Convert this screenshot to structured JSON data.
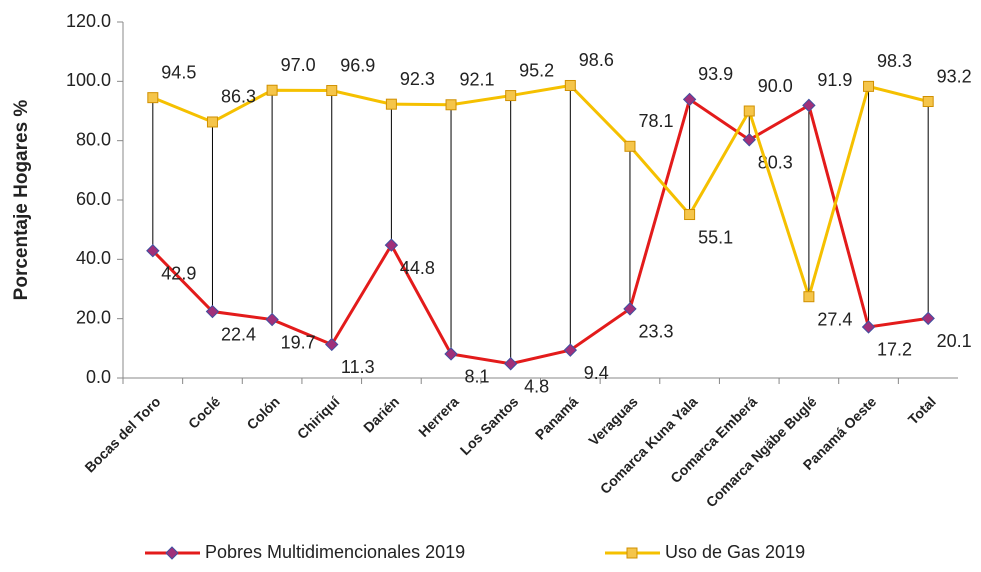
{
  "chart_data": {
    "type": "line",
    "y_label": "Porcentaje Hogares %",
    "categories": [
      "Bocas del Toro",
      "Coclé",
      "Colón",
      "Chiriquí",
      "Darién",
      "Herrera",
      "Los Santos",
      "Panamá",
      "Veraguas",
      "Comarca Kuna Yala",
      "Comarca Emberá",
      "Comarca Ngäbe Buglé",
      "Panamá Oeste",
      "Total"
    ],
    "series": [
      {
        "name": "Pobres Multidimencionales 2019",
        "color": "#e31b1b",
        "marker": "diamond",
        "marker_color": "#a0307a",
        "values": [
          42.9,
          22.4,
          19.7,
          11.3,
          44.8,
          8.1,
          4.8,
          9.4,
          23.3,
          93.9,
          80.3,
          91.9,
          17.2,
          20.1
        ],
        "value_labels": [
          "42.9",
          "22.4",
          "19.7",
          "11.3",
          "44.8",
          "8.1",
          "4.8",
          "9.4",
          "23.3",
          "93.9",
          "80.3",
          "91.9",
          "17.2",
          "20.1"
        ]
      },
      {
        "name": "Uso de Gas 2019",
        "color": "#f5c000",
        "marker": "square",
        "marker_color": "#f5c54a",
        "values": [
          94.5,
          86.3,
          97.0,
          96.9,
          92.3,
          92.1,
          95.2,
          98.6,
          78.1,
          55.1,
          90.0,
          27.4,
          98.3,
          93.2
        ],
        "value_labels": [
          "94.5",
          "86.3",
          "97.0",
          "96.9",
          "92.3",
          "92.1",
          "95.2",
          "98.6",
          "78.1",
          "55.1",
          "90.0",
          "27.4",
          "98.3",
          "93.2"
        ]
      }
    ],
    "ylim": [
      0,
      120
    ],
    "yticks": [
      {
        "value": 0,
        "label": "0.0"
      },
      {
        "value": 20,
        "label": "20.0"
      },
      {
        "value": 40,
        "label": "40.0"
      },
      {
        "value": 60,
        "label": "60.0"
      },
      {
        "value": 80,
        "label": "80.0"
      },
      {
        "value": 100,
        "label": "100.0"
      },
      {
        "value": 120,
        "label": "120.0"
      }
    ],
    "high_low_lines": true,
    "legend": "bottom"
  }
}
